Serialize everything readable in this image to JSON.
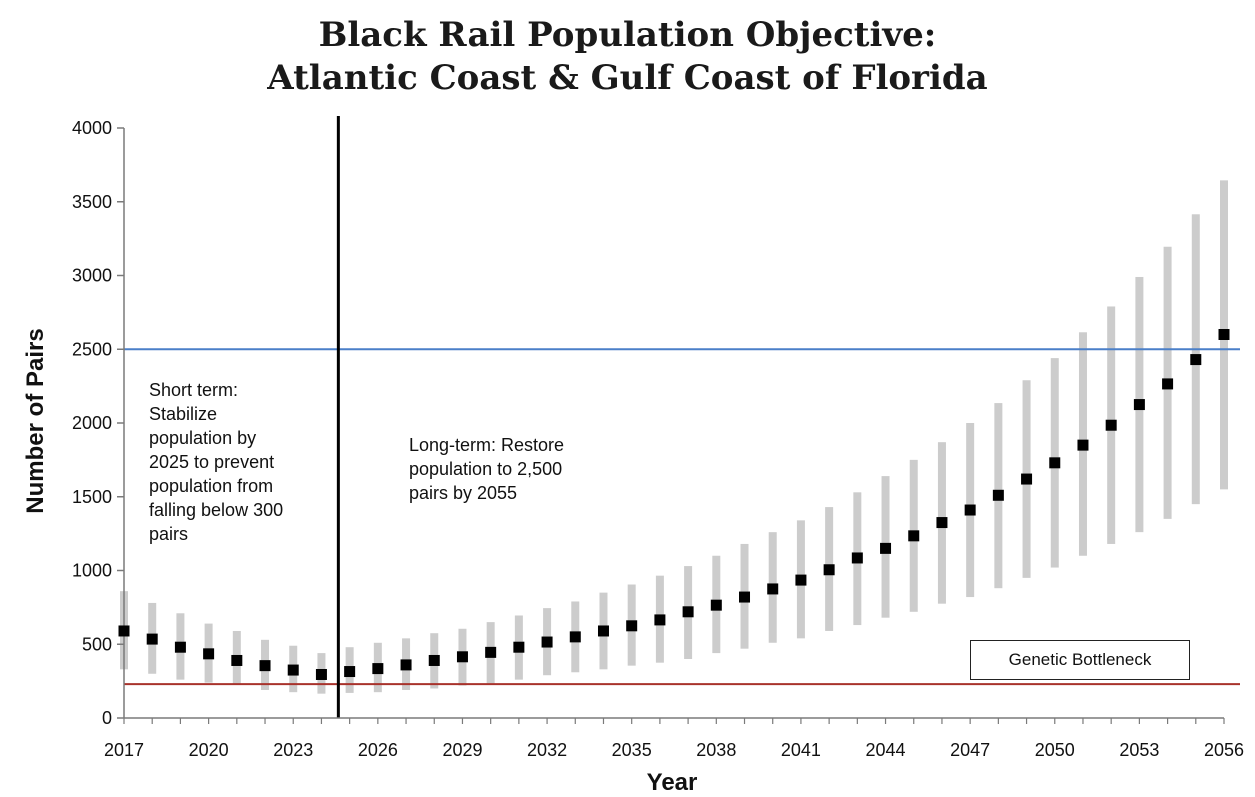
{
  "title_lines": [
    "Black Rail Population Objective:",
    "Atlantic Coast & Gulf Coast of Florida"
  ],
  "annotations": {
    "short_term": "Short term:\nStabilize\npopulation by\n2025 to prevent\npopulation from\nfalling below 300\npairs",
    "long_term": "Long-term: Restore\npopulation to 2,500\npairs by 2055",
    "genetic_bottleneck": "Genetic Bottleneck"
  },
  "colors": {
    "target_line": "#4a7fc8",
    "bottleneck_line": "#a8322b",
    "range_bar": "#cccccc",
    "point": "#000000",
    "divider": "#000000"
  },
  "chart_data": {
    "type": "scatter",
    "title": "Black Rail Population Objective: Atlantic Coast & Gulf Coast of Florida",
    "xlabel": "Year",
    "ylabel": "Number of Pairs",
    "xlim": [
      2017,
      2056
    ],
    "ylim": [
      0,
      4000
    ],
    "x_ticks": [
      "2017",
      "2020",
      "2023",
      "2026",
      "2029",
      "2032",
      "2035",
      "2038",
      "2041",
      "2044",
      "2047",
      "2050",
      "2053",
      "2056"
    ],
    "y_ticks": [
      "0",
      "500",
      "1000",
      "1500",
      "2000",
      "2500",
      "3000",
      "3500",
      "4000"
    ],
    "grid": false,
    "reference_lines": [
      {
        "type": "horizontal",
        "y": 2500
      },
      {
        "type": "horizontal",
        "y": 230
      },
      {
        "type": "vertical",
        "x": 2024.6
      }
    ],
    "series": [
      {
        "x": [
          2017,
          2018,
          2019,
          2020,
          2021,
          2022,
          2023,
          2024,
          2025,
          2026,
          2027,
          2028,
          2029,
          2030,
          2031,
          2032,
          2033,
          2034,
          2035,
          2036,
          2037,
          2038,
          2039,
          2040,
          2041,
          2042,
          2043,
          2044,
          2045,
          2046,
          2047,
          2048,
          2049,
          2050,
          2051,
          2052,
          2053,
          2054,
          2055,
          2056
        ],
        "y": [
          590,
          535,
          480,
          435,
          390,
          355,
          325,
          295,
          315,
          335,
          360,
          390,
          415,
          445,
          480,
          515,
          550,
          590,
          625,
          665,
          720,
          765,
          820,
          875,
          935,
          1005,
          1085,
          1150,
          1235,
          1325,
          1410,
          1510,
          1620,
          1730,
          1850,
          1985,
          2125,
          2265,
          2430,
          2600
        ],
        "low": [
          330,
          300,
          260,
          240,
          230,
          190,
          175,
          165,
          170,
          175,
          190,
          200,
          220,
          235,
          260,
          290,
          310,
          330,
          355,
          375,
          400,
          440,
          470,
          510,
          540,
          590,
          630,
          680,
          720,
          775,
          820,
          880,
          950,
          1020,
          1100,
          1180,
          1260,
          1350,
          1450,
          1550
        ],
        "high": [
          860,
          780,
          710,
          640,
          590,
          530,
          490,
          440,
          480,
          510,
          540,
          575,
          605,
          650,
          695,
          745,
          790,
          850,
          905,
          965,
          1030,
          1100,
          1180,
          1260,
          1340,
          1430,
          1530,
          1640,
          1750,
          1870,
          2000,
          2135,
          2290,
          2440,
          2615,
          2790,
          2990,
          3195,
          3415,
          3645
        ]
      }
    ]
  }
}
